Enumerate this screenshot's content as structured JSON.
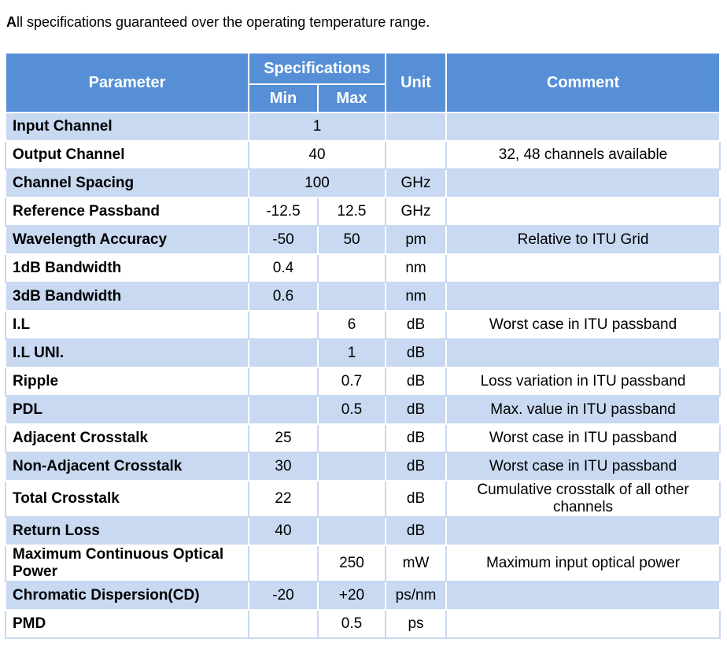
{
  "intro": {
    "bold_letter": "A",
    "text": "ll specifications guaranteed over the operating temperature range."
  },
  "header": {
    "parameter": "Parameter",
    "specifications": "Specifications",
    "min": "Min",
    "max": "Max",
    "unit": "Unit",
    "comment": "Comment"
  },
  "rows": [
    {
      "param": "Input Channel",
      "value": "1",
      "unit": "",
      "comment": ""
    },
    {
      "param": "Output Channel",
      "value": "40",
      "unit": "",
      "comment": "32, 48 channels available"
    },
    {
      "param": "Channel Spacing",
      "value": "100",
      "unit": "GHz",
      "comment": ""
    },
    {
      "param": "Reference Passband",
      "min": "-12.5",
      "max": "12.5",
      "unit": "GHz",
      "comment": ""
    },
    {
      "param": "Wavelength Accuracy",
      "min": "-50",
      "max": "50",
      "unit": "pm",
      "comment": "Relative to ITU Grid"
    },
    {
      "param": "1dB Bandwidth",
      "min": "0.4",
      "max": "",
      "unit": "nm",
      "comment": ""
    },
    {
      "param": "3dB Bandwidth",
      "min": "0.6",
      "max": "",
      "unit": "nm",
      "comment": ""
    },
    {
      "param": "I.L",
      "min": "",
      "max": "6",
      "unit": "dB",
      "comment": "Worst case in ITU passband"
    },
    {
      "param": "I.L UNI.",
      "min": "",
      "max": "1",
      "unit": "dB",
      "comment": ""
    },
    {
      "param": "Ripple",
      "min": "",
      "max": "0.7",
      "unit": "dB",
      "comment": "Loss variation in ITU passband"
    },
    {
      "param": "PDL",
      "min": "",
      "max": "0.5",
      "unit": "dB",
      "comment": "Max. value in ITU passband"
    },
    {
      "param": "Adjacent Crosstalk",
      "min": "25",
      "max": "",
      "unit": "dB",
      "comment": "Worst case in ITU passband"
    },
    {
      "param": "Non-Adjacent Crosstalk",
      "min": "30",
      "max": "",
      "unit": "dB",
      "comment": "Worst case in ITU passband"
    },
    {
      "param": "Total Crosstalk",
      "min": "22",
      "max": "",
      "unit": "dB",
      "comment": "Cumulative crosstalk of all other channels"
    },
    {
      "param": "Return Loss",
      "min": "40",
      "max": "",
      "unit": "dB",
      "comment": ""
    },
    {
      "param": "Maximum Continuous Optical Power",
      "min": "",
      "max": "250",
      "unit": "mW",
      "comment": "Maximum input optical power"
    },
    {
      "param": "Chromatic Dispersion(CD)",
      "min": "-20",
      "max": "+20",
      "unit": "ps/nm",
      "comment": ""
    },
    {
      "param": "PMD",
      "min": "",
      "max": "0.5",
      "unit": "ps",
      "comment": ""
    }
  ],
  "colors": {
    "header_bg": "#568fd6",
    "stripe_bg": "#c8d9f1",
    "header_text": "#ffffff"
  }
}
